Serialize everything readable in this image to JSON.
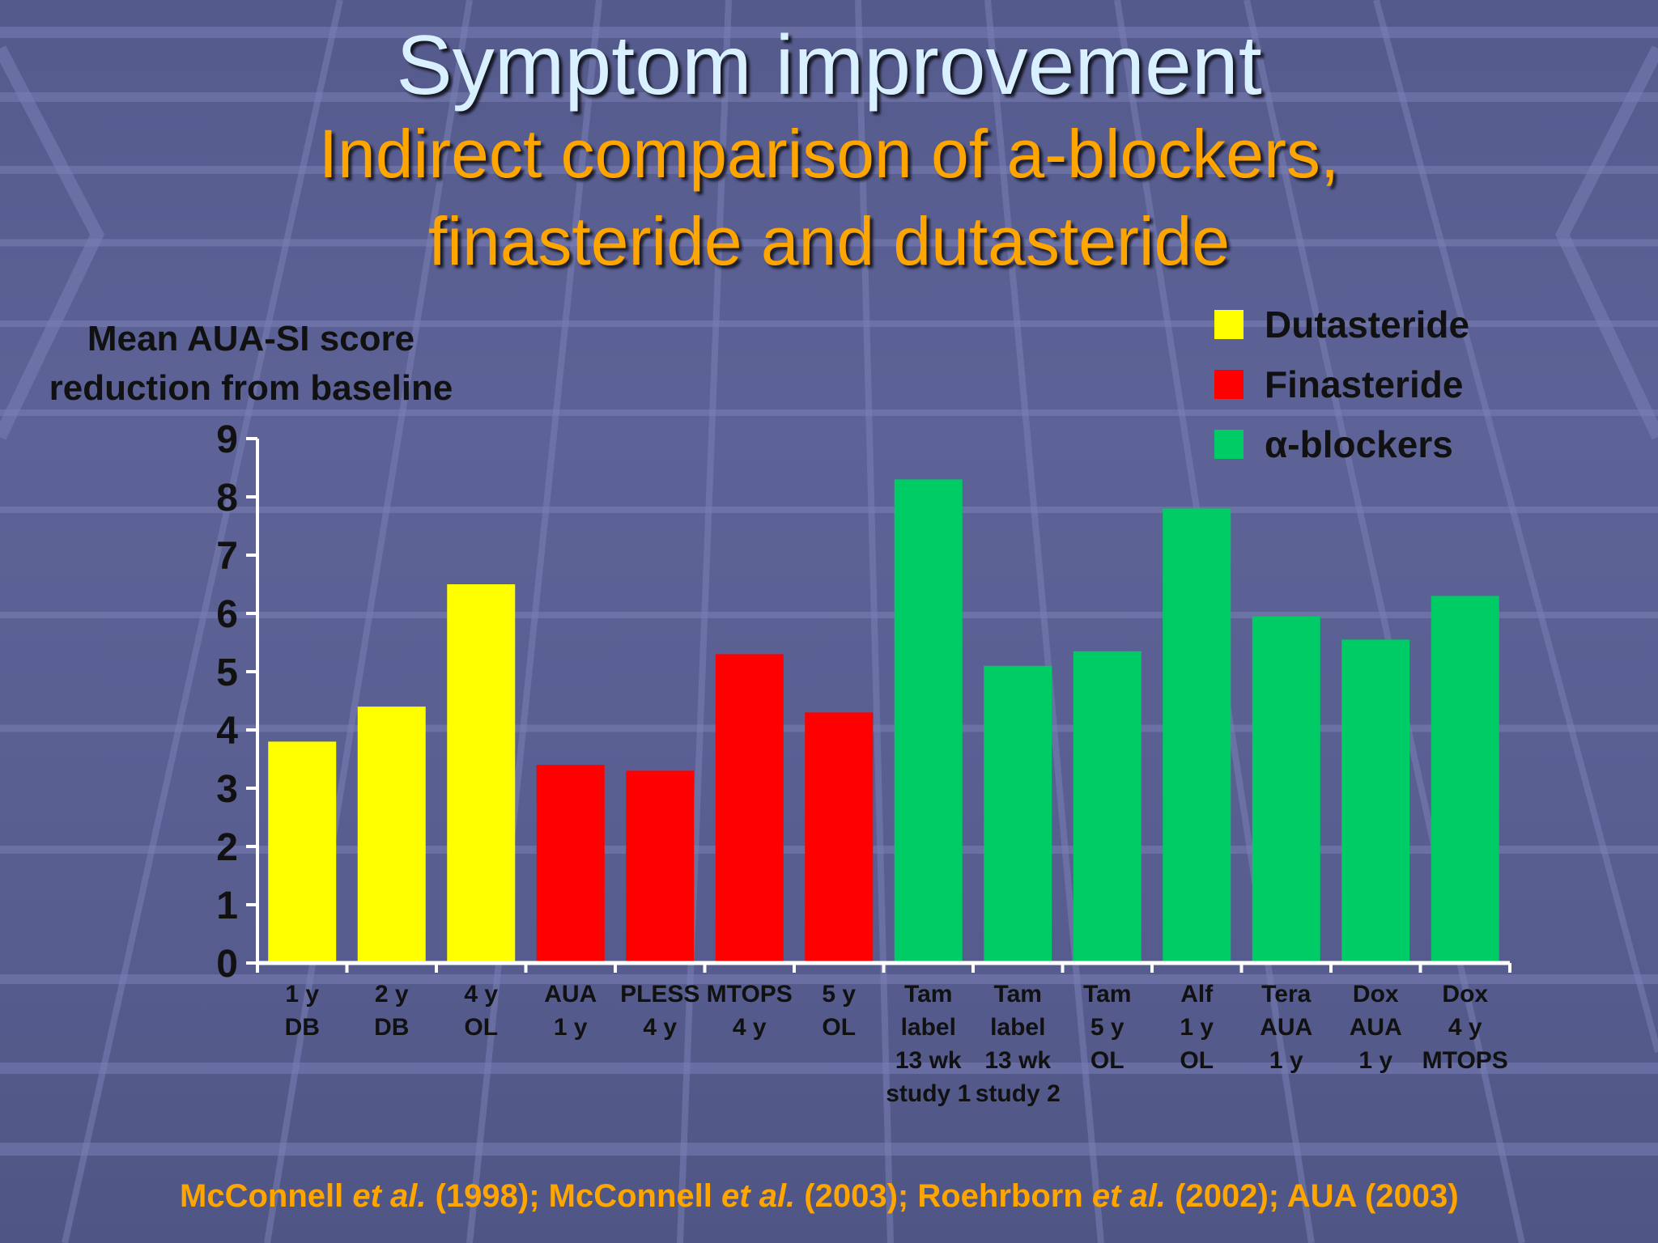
{
  "title": "Symptom improvement",
  "subtitle_lines": [
    "Indirect comparison of a-blockers,",
    "finasteride and dutasteride"
  ],
  "citation": {
    "parts": [
      {
        "text": "McConnell ",
        "italic": false
      },
      {
        "text": "et al.",
        "italic": true
      },
      {
        "text": " (1998); McConnell ",
        "italic": false
      },
      {
        "text": "et al.",
        "italic": true
      },
      {
        "text": " (2003); Roehrborn ",
        "italic": false
      },
      {
        "text": "et al.",
        "italic": true
      },
      {
        "text": " (2002); AUA (2003)",
        "italic": false
      }
    ]
  },
  "colors": {
    "title": "#d8f0ff",
    "subtitle": "#ffa500",
    "dutasteride": "#ffff00",
    "finasteride": "#ff0000",
    "alpha_blockers": "#00cc66",
    "axis": "#ffffff",
    "text": "#111111"
  },
  "chart_data": {
    "type": "bar",
    "ylabel": [
      "Mean AUA-SI score",
      "reduction from baseline"
    ],
    "xlabel": "",
    "ylim": [
      0,
      9
    ],
    "yticks": [
      0,
      1,
      2,
      3,
      4,
      5,
      6,
      7,
      8,
      9
    ],
    "grid": false,
    "legend_position": "top-right",
    "legend": [
      {
        "name": "Dutasteride",
        "color": "#ffff00"
      },
      {
        "name": "Finasteride",
        "color": "#ff0000"
      },
      {
        "name": "α-blockers",
        "color": "#00cc66"
      }
    ],
    "bars": [
      {
        "label": [
          "1 y",
          "DB"
        ],
        "value": 3.8,
        "series": "Dutasteride"
      },
      {
        "label": [
          "2 y",
          "DB"
        ],
        "value": 4.4,
        "series": "Dutasteride"
      },
      {
        "label": [
          "4 y",
          "OL"
        ],
        "value": 6.5,
        "series": "Dutasteride"
      },
      {
        "label": [
          "AUA",
          "1 y"
        ],
        "value": 3.4,
        "series": "Finasteride"
      },
      {
        "label": [
          "PLESS",
          "4 y"
        ],
        "value": 3.3,
        "series": "Finasteride"
      },
      {
        "label": [
          "MTOPS",
          "4 y"
        ],
        "value": 5.3,
        "series": "Finasteride"
      },
      {
        "label": [
          "5 y",
          "OL"
        ],
        "value": 4.3,
        "series": "Finasteride"
      },
      {
        "label": [
          "Tam",
          "label",
          "13 wk",
          "study 1"
        ],
        "value": 8.3,
        "series": "α-blockers"
      },
      {
        "label": [
          "Tam",
          "label",
          "13 wk",
          "study 2"
        ],
        "value": 5.1,
        "series": "α-blockers"
      },
      {
        "label": [
          "Tam",
          "5 y",
          "OL"
        ],
        "value": 5.35,
        "series": "α-blockers"
      },
      {
        "label": [
          "Alf",
          "1 y",
          "OL"
        ],
        "value": 7.8,
        "series": "α-blockers"
      },
      {
        "label": [
          "Tera",
          "AUA",
          "1 y"
        ],
        "value": 5.95,
        "series": "α-blockers"
      },
      {
        "label": [
          "Dox",
          "AUA",
          "1 y"
        ],
        "value": 5.55,
        "series": "α-blockers"
      },
      {
        "label": [
          "Dox",
          "4 y",
          "MTOPS"
        ],
        "value": 6.3,
        "series": "α-blockers"
      }
    ]
  }
}
